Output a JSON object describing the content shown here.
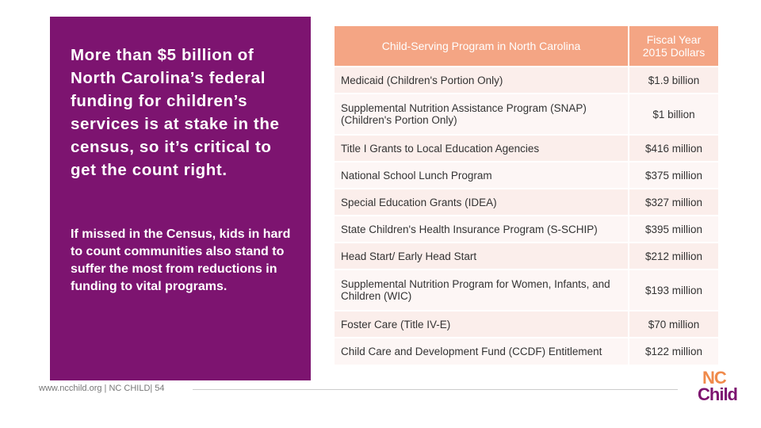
{
  "panel": {
    "headline": "More than $5 billion of North Carolina’s federal funding for children’s services is at stake in the census, so it’s critical to get the count right.",
    "body": "If missed in the Census, kids in hard to count communities also stand to suffer the most from reductions in funding to vital programs."
  },
  "table": {
    "header": [
      "Child-Serving Program in North Carolina",
      "Fiscal Year 2015 Dollars"
    ],
    "rows": [
      [
        "Medicaid (Children's Portion Only)",
        "$1.9 billion"
      ],
      [
        "Supplemental Nutrition Assistance Program (SNAP) (Children's Portion Only)",
        "$1 billion"
      ],
      [
        "Title I Grants to Local Education Agencies",
        "$416 million"
      ],
      [
        "National School Lunch Program",
        "$375 million"
      ],
      [
        "Special Education Grants (IDEA)",
        "$327 million"
      ],
      [
        "State Children's Health Insurance Program (S-SCHIP)",
        "$395 million"
      ],
      [
        "Head Start/ Early Head Start",
        "$212 million"
      ],
      [
        "Supplemental Nutrition Program for Women, Infants, and Children (WIC)",
        "$193 million"
      ],
      [
        "Foster Care (Title IV-E)",
        "$70 million"
      ],
      [
        "Child Care and Development Fund (CCDF) Entitlement",
        "$122 million"
      ]
    ]
  },
  "footer": "www.ncchild.org | NC CHILD| 54",
  "logo": {
    "top": "NC",
    "bottom": "Child"
  }
}
